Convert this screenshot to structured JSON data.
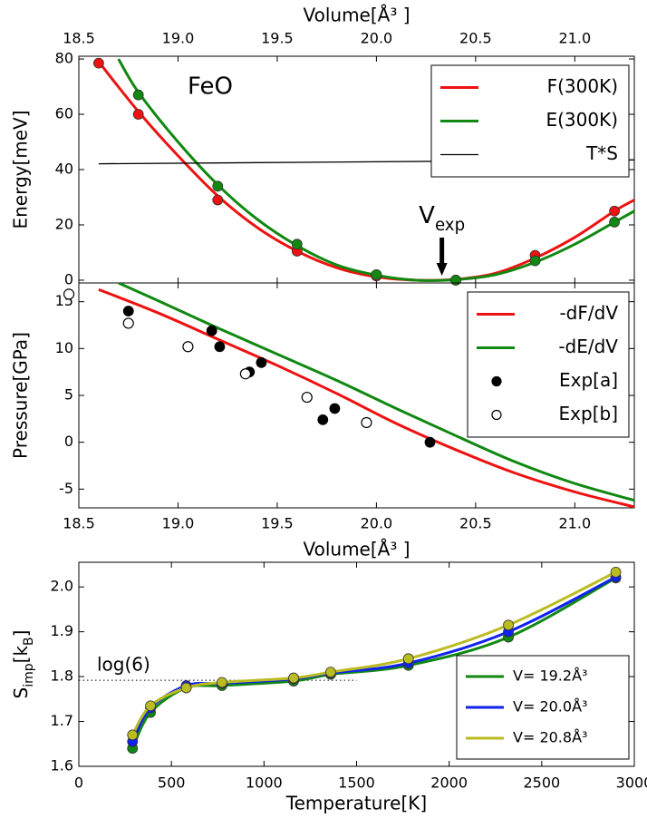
{
  "chart_data": [
    {
      "type": "line",
      "xlabel": "Volume[Å³ ]",
      "xaxis_position": "top",
      "ylabel": "Energy[meV]",
      "xlim": [
        18.5,
        21.3
      ],
      "ylim": [
        -1,
        81
      ],
      "xticks": [
        {
          "value": 18.5,
          "label": "18.5"
        },
        {
          "value": 19,
          "label": "19.0"
        },
        19.5,
        {
          "value": 20,
          "label": "20.0"
        },
        20.5,
        {
          "value": 21,
          "label": "21.0"
        }
      ],
      "yticks": [
        0,
        20,
        40,
        60,
        80
      ],
      "legend": "upper right",
      "text": "FeO",
      "annotation": {
        "text": [
          {
            "text": "V"
          },
          {
            "text": "exp",
            "sub": true
          }
        ],
        "x": 20.33
      },
      "series": [
        {
          "name": "F(300K)",
          "color": "#ee1111",
          "x": [
            18.6,
            18.8,
            19.0,
            19.2,
            19.4,
            19.6,
            19.8,
            20.0,
            20.2,
            20.4,
            20.6,
            20.8,
            21.0,
            21.2,
            21.3
          ],
          "values": [
            79,
            61,
            45,
            30.5,
            19,
            10.5,
            4.5,
            1.2,
            0,
            0.3,
            2.5,
            8,
            15.5,
            25,
            29
          ],
          "marker_x": [
            18.6,
            18.8,
            19.2,
            19.6,
            20.0,
            20.4,
            20.8,
            21.2
          ],
          "marker_values": [
            78.5,
            60,
            29,
            10.5,
            1.5,
            0,
            9,
            25
          ]
        },
        {
          "name": "E(300K)",
          "color": "#118811",
          "x": [
            18.7,
            18.8,
            19.0,
            19.2,
            19.4,
            19.6,
            19.8,
            20.0,
            20.2,
            20.4,
            20.6,
            20.8,
            21.0,
            21.2,
            21.3
          ],
          "values": [
            80,
            68,
            50,
            34.5,
            22,
            12.5,
            5.5,
            1.8,
            0,
            0.2,
            2,
            6.5,
            13,
            21,
            25
          ],
          "marker_x": [
            18.8,
            19.2,
            19.6,
            20.0,
            20.4,
            20.8,
            21.2
          ],
          "marker_values": [
            67,
            34,
            13,
            2,
            0,
            7,
            21
          ]
        },
        {
          "name": "T*S",
          "color": "#000000",
          "thin": true,
          "x": [
            18.6,
            21.3
          ],
          "values": [
            42.1,
            43.5
          ]
        }
      ]
    },
    {
      "type": "line",
      "xlabel": "Volume[Å³ ]",
      "xaxis_position": "bottom",
      "ylabel": "Pressure[GPa]",
      "xlim": [
        18.5,
        21.3
      ],
      "ylim": [
        -7,
        17
      ],
      "xticks": [
        {
          "value": 18.5,
          "label": "18.5"
        },
        {
          "value": 19,
          "label": "19.0"
        },
        19.5,
        {
          "value": 20,
          "label": "20.0"
        },
        20.5,
        {
          "value": 21,
          "label": "21.0"
        }
      ],
      "yticks": [
        -5,
        0,
        5,
        10,
        15
      ],
      "legend": "upper right",
      "series": [
        {
          "name": "-dF/dV",
          "color": "#ee1111",
          "x": [
            18.6,
            18.9,
            19.2,
            19.5,
            19.8,
            20.1,
            20.4,
            20.7,
            21.0,
            21.3
          ],
          "values": [
            16.3,
            13.8,
            11.0,
            8.2,
            5.2,
            2.0,
            -0.8,
            -3.3,
            -5.3,
            -6.9
          ]
        },
        {
          "name": "-dE/dV",
          "color": "#118811",
          "x": [
            18.7,
            18.9,
            19.2,
            19.5,
            19.8,
            20.1,
            20.4,
            20.7,
            21.0,
            21.3
          ],
          "values": [
            17,
            15.1,
            12.2,
            9.4,
            6.6,
            3.6,
            0.7,
            -2.1,
            -4.4,
            -6.2
          ]
        },
        {
          "name": "Exp[a]",
          "color": "#000000",
          "marker": "filled",
          "x": [
            18.75,
            19.17,
            19.21,
            19.36,
            19.42,
            19.73,
            19.79,
            20.27
          ],
          "values": [
            14,
            11.9,
            10.2,
            7.5,
            8.5,
            2.4,
            3.6,
            0
          ]
        },
        {
          "name": "Exp[b]",
          "color": "#000000",
          "marker": "open",
          "x": [
            18.45,
            18.75,
            19.05,
            19.34,
            19.65,
            19.95
          ],
          "values": [
            15.8,
            12.7,
            10.2,
            7.3,
            4.8,
            2.1
          ]
        }
      ]
    },
    {
      "type": "line",
      "xlabel": "Temperature[K]",
      "xaxis_position": "bottom",
      "ylabel": [
        {
          "text": "S"
        },
        {
          "text": "imp",
          "sub": true
        },
        {
          "text": "[k"
        },
        {
          "text": "B",
          "sub": true
        },
        {
          "text": "]"
        }
      ],
      "xlim": [
        0,
        3000
      ],
      "ylim": [
        1.6,
        2.055
      ],
      "xticks": [
        0,
        500,
        1000,
        1500,
        2000,
        2500,
        3000
      ],
      "yticks": [
        1.6,
        1.7,
        1.8,
        1.9,
        {
          "value": 2,
          "label": "2.0"
        }
      ],
      "legend": "lower right",
      "reference_line": {
        "value": 1.7918,
        "label": "log(6)",
        "xmax": 1500
      },
      "series": [
        {
          "name": "V= 19.2Å³",
          "color": "#118811",
          "markers": true,
          "x": [
            290,
            387,
            580,
            773,
            1160,
            1360,
            1780,
            2320,
            2900
          ],
          "values": [
            1.64,
            1.72,
            1.775,
            1.78,
            1.79,
            1.805,
            1.825,
            1.888,
            2.02
          ]
        },
        {
          "name": "V= 20.0Å³",
          "color": "#1122ee",
          "markers": true,
          "x": [
            290,
            387,
            580,
            773,
            1160,
            1360,
            1780,
            2320,
            2900
          ],
          "values": [
            1.655,
            1.73,
            1.78,
            1.785,
            1.795,
            1.808,
            1.83,
            1.9,
            2.022
          ]
        },
        {
          "name": "V= 20.8Å³",
          "color": "#bbbb22",
          "markers": true,
          "x": [
            290,
            387,
            580,
            773,
            1160,
            1360,
            1780,
            2320,
            2900
          ],
          "values": [
            1.67,
            1.735,
            1.775,
            1.787,
            1.797,
            1.81,
            1.84,
            1.915,
            2.033
          ]
        }
      ]
    }
  ]
}
